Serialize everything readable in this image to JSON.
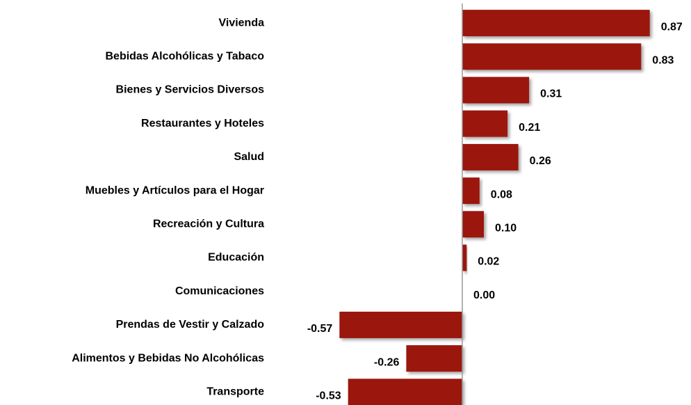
{
  "chart_data": {
    "type": "bar",
    "orientation": "horizontal",
    "categories": [
      "Vivienda",
      "Bebidas Alcohólicas y Tabaco",
      "Bienes y Servicios Diversos",
      "Restaurantes y Hoteles",
      "Salud",
      "Muebles y Artículos para el Hogar",
      "Recreación y Cultura",
      "Educación",
      "Comunicaciones",
      "Prendas de Vestir y Calzado",
      "Alimentos y Bebidas No Alcohólicas",
      "Transporte"
    ],
    "values": [
      0.87,
      0.83,
      0.31,
      0.21,
      0.26,
      0.08,
      0.1,
      0.02,
      0.0,
      -0.57,
      -0.26,
      -0.53
    ],
    "value_labels": [
      "0.87",
      "0.83",
      "0.31",
      "0.21",
      "0.26",
      "0.08",
      "0.10",
      "0.02",
      "0.00",
      "-0.57",
      "-0.26",
      "-0.53"
    ],
    "color": "#9b1408",
    "xlim": [
      -0.6,
      0.9
    ]
  }
}
